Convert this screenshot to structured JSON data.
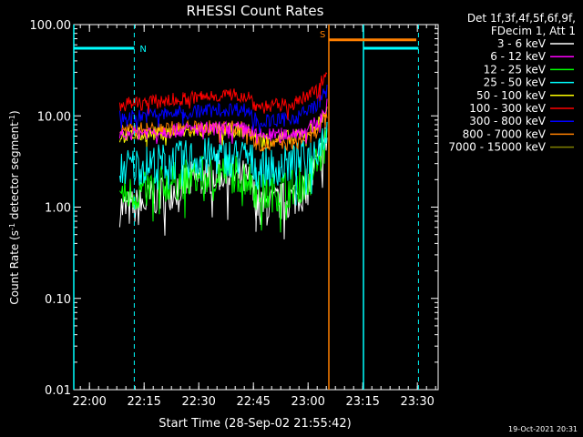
{
  "chart_data": {
    "type": "line",
    "title": "RHESSI Count Rates",
    "xlabel": "Start Time (28-Sep-02 21:55:42)",
    "ylabel_parts": [
      "Count Rate (s",
      "-1",
      " detector segment",
      "-1",
      ")"
    ],
    "y_scale": "log",
    "ylim": [
      0.01,
      100
    ],
    "y_ticks": [
      {
        "value": 0.01,
        "label": "0.01"
      },
      {
        "value": 0.1,
        "label": "0.10"
      },
      {
        "value": 1,
        "label": "1.00"
      },
      {
        "value": 10,
        "label": "10.00"
      },
      {
        "value": 100,
        "label": "100.00"
      }
    ],
    "xlim_minutes": [
      0,
      100
    ],
    "x_ticks": [
      {
        "minutes": 4.3,
        "label": "22:00"
      },
      {
        "minutes": 19.3,
        "label": "22:15"
      },
      {
        "minutes": 34.3,
        "label": "22:30"
      },
      {
        "minutes": 49.3,
        "label": "22:45"
      },
      {
        "minutes": 64.3,
        "label": "23:00"
      },
      {
        "minutes": 79.3,
        "label": "23:15"
      },
      {
        "minutes": 94.3,
        "label": "23:30"
      }
    ],
    "legend_placement": "right",
    "legend_header": [
      "Det 1f,3f,4f,5f,6f,9f,",
      "FDecim 1, Att 1"
    ],
    "series": [
      {
        "name": "3 - 6 keV",
        "color": "#ffffff",
        "points": [
          [
            12.6,
            1.0
          ],
          [
            14,
            0.95
          ],
          [
            18,
            1.0
          ],
          [
            22,
            1.3
          ],
          [
            26,
            1.5
          ],
          [
            30,
            1.8
          ],
          [
            35,
            2.1
          ],
          [
            40,
            2.4
          ],
          [
            45,
            2.2
          ],
          [
            48,
            1.9
          ],
          [
            50,
            1.15
          ],
          [
            53,
            1.0
          ],
          [
            56,
            1.1
          ],
          [
            60,
            1.25
          ],
          [
            64,
            1.6
          ],
          [
            67.5,
            3.5
          ],
          [
            69.5,
            6.0
          ]
        ]
      },
      {
        "name": "6 - 12 keV",
        "color": "#ff00ff",
        "points": [
          [
            12.6,
            6.4
          ],
          [
            16,
            6.5
          ],
          [
            20,
            6.6
          ],
          [
            25,
            6.8
          ],
          [
            30,
            7.0
          ],
          [
            35,
            7.2
          ],
          [
            40,
            7.3
          ],
          [
            45,
            7.3
          ],
          [
            48,
            7.1
          ],
          [
            50,
            6.2
          ],
          [
            53,
            6.1
          ],
          [
            57,
            6.2
          ],
          [
            61,
            6.5
          ],
          [
            65,
            7.5
          ],
          [
            67.5,
            9.0
          ],
          [
            69.5,
            13.0
          ]
        ]
      },
      {
        "name": "12 - 25 keV",
        "color": "#00ff00",
        "points": [
          [
            12.6,
            1.45
          ],
          [
            14,
            1.35
          ],
          [
            18,
            1.45
          ],
          [
            22,
            1.65
          ],
          [
            26,
            1.85
          ],
          [
            30,
            2.0
          ],
          [
            35,
            2.2
          ],
          [
            40,
            2.4
          ],
          [
            45,
            2.3
          ],
          [
            48,
            2.1
          ],
          [
            50,
            1.5
          ],
          [
            53,
            1.4
          ],
          [
            56,
            1.5
          ],
          [
            60,
            1.65
          ],
          [
            64,
            2.0
          ],
          [
            67.5,
            3.5
          ],
          [
            69.5,
            5.5
          ]
        ]
      },
      {
        "name": "25 - 50 keV",
        "color": "#00ffff",
        "points": [
          [
            12.6,
            2.7
          ],
          [
            16,
            2.8
          ],
          [
            20,
            2.95
          ],
          [
            25,
            3.1
          ],
          [
            30,
            3.3
          ],
          [
            35,
            3.5
          ],
          [
            40,
            3.6
          ],
          [
            45,
            3.55
          ],
          [
            48,
            3.4
          ],
          [
            50,
            2.75
          ],
          [
            53,
            2.7
          ],
          [
            57,
            2.85
          ],
          [
            61,
            3.1
          ],
          [
            65,
            3.7
          ],
          [
            67.5,
            5.0
          ],
          [
            69.5,
            7.0
          ]
        ]
      },
      {
        "name": "50 - 100 keV",
        "color": "#ffff00",
        "points": [
          [
            12.6,
            6.0
          ],
          [
            16,
            6.1
          ],
          [
            20,
            6.3
          ],
          [
            25,
            6.5
          ],
          [
            30,
            6.7
          ],
          [
            35,
            6.9
          ],
          [
            40,
            7.0
          ],
          [
            45,
            7.0
          ],
          [
            48,
            6.8
          ],
          [
            50,
            5.7
          ],
          [
            53,
            5.6
          ],
          [
            57,
            5.7
          ],
          [
            61,
            6.0
          ],
          [
            65,
            7.0
          ],
          [
            67.5,
            8.5
          ],
          [
            69.5,
            12.0
          ]
        ]
      },
      {
        "name": "100 - 300 keV",
        "color": "#ff0000",
        "points": [
          [
            12.6,
            13.2
          ],
          [
            16,
            13.5
          ],
          [
            20,
            14.0
          ],
          [
            25,
            14.6
          ],
          [
            30,
            15.3
          ],
          [
            35,
            16.0
          ],
          [
            40,
            16.8
          ],
          [
            45,
            17.2
          ],
          [
            48,
            16.5
          ],
          [
            50,
            12.8
          ],
          [
            53,
            12.6
          ],
          [
            57,
            13.0
          ],
          [
            61,
            14.0
          ],
          [
            65,
            17.0
          ],
          [
            67.5,
            22.0
          ],
          [
            69.5,
            30.0
          ]
        ]
      },
      {
        "name": "300 - 800 keV",
        "color": "#0000ff",
        "points": [
          [
            12.6,
            9.6
          ],
          [
            16,
            9.8
          ],
          [
            20,
            10.1
          ],
          [
            25,
            10.5
          ],
          [
            30,
            10.9
          ],
          [
            35,
            11.3
          ],
          [
            40,
            11.7
          ],
          [
            45,
            11.9
          ],
          [
            48,
            11.5
          ],
          [
            50,
            9.0
          ],
          [
            53,
            8.8
          ],
          [
            57,
            9.0
          ],
          [
            61,
            9.7
          ],
          [
            65,
            11.8
          ],
          [
            67.5,
            14.5
          ],
          [
            69.5,
            19.0
          ]
        ]
      },
      {
        "name": "800 - 7000 keV",
        "color": "#ff8000",
        "points": [
          [
            12.6,
            6.9
          ],
          [
            16,
            7.0
          ],
          [
            20,
            7.2
          ],
          [
            25,
            7.3
          ],
          [
            30,
            7.4
          ],
          [
            35,
            7.4
          ],
          [
            40,
            7.5
          ],
          [
            45,
            7.4
          ],
          [
            48,
            7.2
          ],
          [
            50,
            5.0
          ],
          [
            53,
            4.8
          ],
          [
            57,
            4.9
          ],
          [
            61,
            5.1
          ],
          [
            65,
            5.8
          ],
          [
            67.5,
            7.5
          ],
          [
            69.5,
            10.0
          ]
        ]
      },
      {
        "name": "7000 - 15000 keV",
        "color": "#808000",
        "points": []
      }
    ],
    "attenuator_states": [
      {
        "label": "N",
        "color": "#00ffff",
        "value": 55,
        "segments": [
          [
            0,
            16.6
          ],
          [
            79.5,
            94.6
          ]
        ],
        "boundaries": [
          16.6,
          94.6
        ]
      },
      {
        "label": "S",
        "color": "#ff8000",
        "value": 68,
        "segments": [
          [
            70.0,
            94.0
          ]
        ],
        "boundaries": [
          70.0
        ]
      }
    ],
    "data_gaps": [
      {
        "color": "#00ffff",
        "minutes": [
          0,
          79.5
        ]
      },
      {
        "color": "#ff8000",
        "minutes": [
          70.0
        ]
      }
    ],
    "footer_timestamp": "19-Oct-2021 20:31"
  }
}
